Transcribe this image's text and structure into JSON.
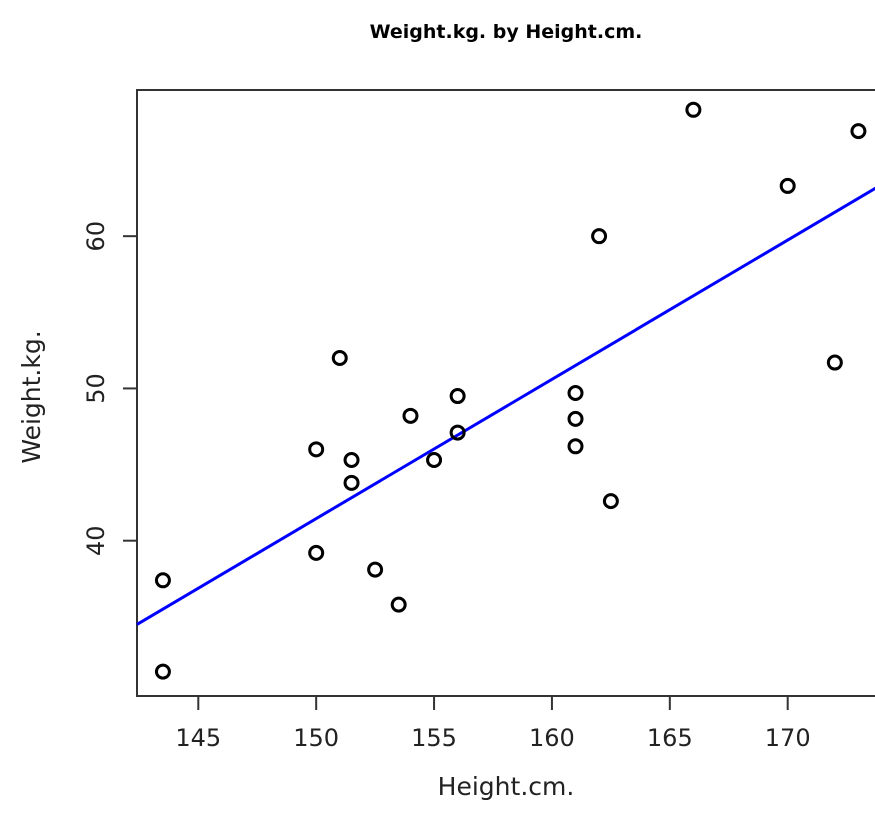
{
  "chart_data": {
    "type": "scatter",
    "title": "Weight.kg. by Height.cm.",
    "xlabel": "Height.cm.",
    "ylabel": "Weight.kg.",
    "xlim": [
      142.4,
      174.0
    ],
    "ylim": [
      29.8,
      69.6
    ],
    "xticks": [
      145,
      150,
      155,
      160,
      165,
      170
    ],
    "yticks": [
      40,
      50,
      60
    ],
    "grid": false,
    "point_color": "#000000",
    "line_color": "#0000ff",
    "points": [
      {
        "x": 143.5,
        "y": 37.4
      },
      {
        "x": 143.5,
        "y": 31.4
      },
      {
        "x": 150.0,
        "y": 46.0
      },
      {
        "x": 150.0,
        "y": 39.2
      },
      {
        "x": 151.0,
        "y": 52.0
      },
      {
        "x": 151.5,
        "y": 45.3
      },
      {
        "x": 151.5,
        "y": 43.8
      },
      {
        "x": 152.5,
        "y": 38.1
      },
      {
        "x": 153.5,
        "y": 35.8
      },
      {
        "x": 154.0,
        "y": 48.2
      },
      {
        "x": 155.0,
        "y": 45.3
      },
      {
        "x": 156.0,
        "y": 49.5
      },
      {
        "x": 156.0,
        "y": 47.1
      },
      {
        "x": 161.0,
        "y": 49.7
      },
      {
        "x": 161.0,
        "y": 48.0
      },
      {
        "x": 161.0,
        "y": 46.2
      },
      {
        "x": 162.0,
        "y": 60.0
      },
      {
        "x": 162.5,
        "y": 42.6
      },
      {
        "x": 166.0,
        "y": 68.3
      },
      {
        "x": 170.0,
        "y": 63.3
      },
      {
        "x": 172.0,
        "y": 51.7
      },
      {
        "x": 173.0,
        "y": 66.9
      }
    ],
    "regression_line": [
      {
        "x": 142.4,
        "y": 34.5
      },
      {
        "x": 174.0,
        "y": 63.4
      }
    ]
  }
}
